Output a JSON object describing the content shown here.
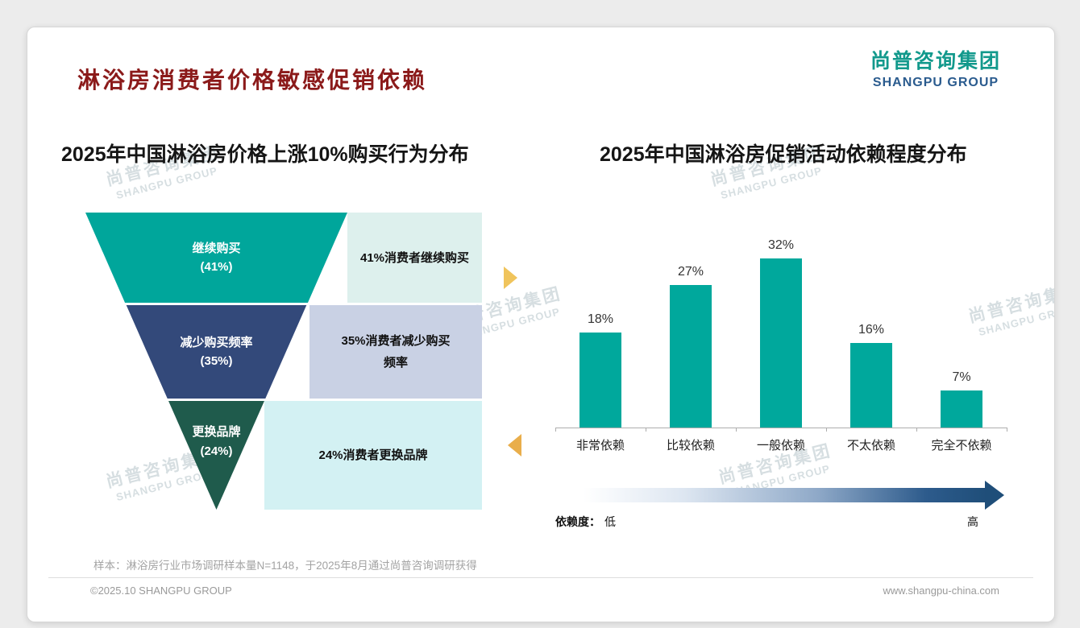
{
  "page": {
    "background": "#ececec",
    "title": "淋浴房消费者价格敏感促销依赖",
    "title_color": "#8B1A1A",
    "logo": {
      "cn": "尚普咨询集团",
      "en": "SHANGPU GROUP"
    },
    "watermark": {
      "cn": "尚普咨询集团",
      "en": "SHANGPU GROUP"
    },
    "footer": {
      "sample_note": "样本：淋浴房行业市场调研样本量N=1148，于2025年8月通过尚普咨询调研获得",
      "copyright": "©2025.10 SHANGPU GROUP",
      "website": "www.shangpu-china.com"
    }
  },
  "chart_data": [
    {
      "type": "funnel",
      "title": "2025年中国淋浴房价格上涨10%购买行为分布",
      "categories": [
        "继续购买",
        "减少购买频率",
        "更换品牌"
      ],
      "values": [
        41,
        35,
        24
      ],
      "value_labels": [
        "(41%)",
        "(35%)",
        "(24%)"
      ],
      "annotations": [
        "41%消费者继续购买",
        "35%消费者减少购买频率",
        "24%消费者更换品牌"
      ],
      "colors": [
        "#00A69B",
        "#33497A",
        "#1F5B4C"
      ],
      "annotation_bg": [
        "#DDF0ED",
        "#C9D1E4",
        "#D3F1F3"
      ],
      "legend_position": "none"
    },
    {
      "type": "bar",
      "title": "2025年中国淋浴房促销活动依赖程度分布",
      "categories": [
        "非常依赖",
        "比较依赖",
        "一般依赖",
        "不太依赖",
        "完全不依赖"
      ],
      "values": [
        18,
        27,
        32,
        16,
        7
      ],
      "value_labels": [
        "18%",
        "27%",
        "32%",
        "16%",
        "7%"
      ],
      "ylim": [
        0,
        32
      ],
      "bar_color": "#00A89C",
      "grid": false,
      "axis_legend": {
        "label": "依赖度：",
        "low": "低",
        "high": "高"
      },
      "gradient": [
        "#FFFFFF",
        "#1F4E79"
      ]
    }
  ]
}
